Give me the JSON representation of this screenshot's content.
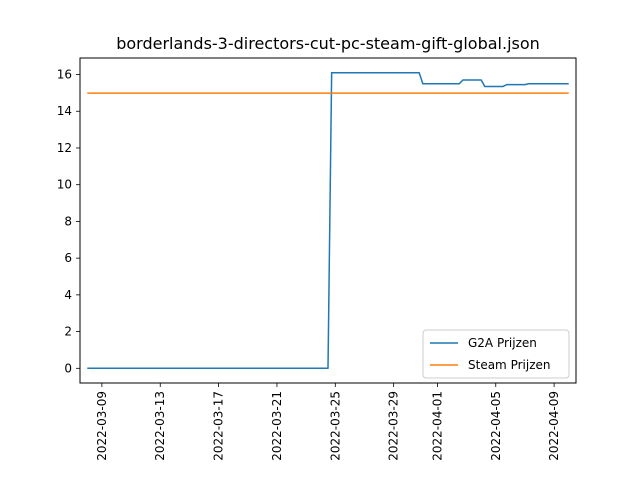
{
  "chart_data": {
    "type": "line",
    "title": "borderlands-3-directors-cut-pc-steam-gift-global.json",
    "xlabel": "",
    "ylabel": "",
    "x_type": "date",
    "xlim": [
      "2022-03-07T12:00",
      "2022-04-10T12:00"
    ],
    "ylim": [
      -0.8,
      16.9
    ],
    "x_ticks": [
      "2022-03-09",
      "2022-03-13",
      "2022-03-17",
      "2022-03-21",
      "2022-03-25",
      "2022-03-29",
      "2022-04-01",
      "2022-04-05",
      "2022-04-09"
    ],
    "y_ticks": [
      0,
      2,
      4,
      6,
      8,
      10,
      12,
      14,
      16
    ],
    "grid": false,
    "legend_position": "lower-right",
    "series": [
      {
        "name": "G2A Prijzen",
        "color": "#1f77b4",
        "x": [
          "2022-03-08",
          "2022-03-24T12:00",
          "2022-03-24T18:00",
          "2022-03-30T18:00",
          "2022-03-31",
          "2022-04-02T12:00",
          "2022-04-02T18:00",
          "2022-04-04",
          "2022-04-04T06:00",
          "2022-04-05T12:00",
          "2022-04-05T18:00",
          "2022-04-07",
          "2022-04-07T06:00",
          "2022-04-10"
        ],
        "y": [
          0,
          0,
          16.1,
          16.1,
          15.5,
          15.5,
          15.7,
          15.7,
          15.35,
          15.35,
          15.45,
          15.45,
          15.5,
          15.5
        ]
      },
      {
        "name": "Steam Prijzen",
        "color": "#ff7f0e",
        "x": [
          "2022-03-08",
          "2022-04-10"
        ],
        "y": [
          14.99,
          14.99
        ]
      }
    ]
  }
}
